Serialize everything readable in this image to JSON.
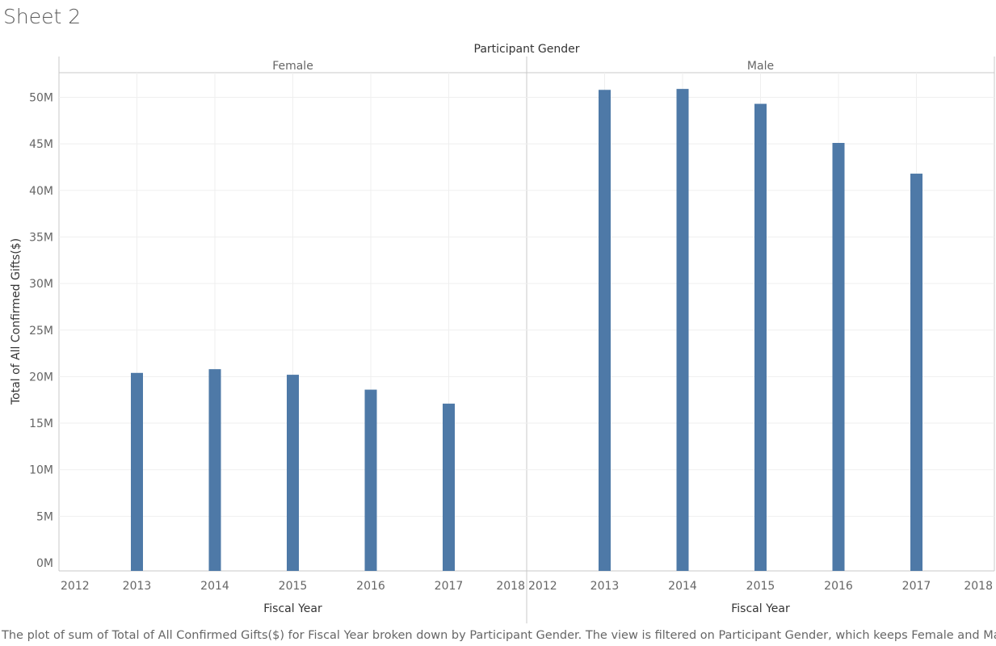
{
  "sheet": {
    "title": "Sheet 2",
    "caption": "The plot of sum of Total of All Confirmed Gifts($) for Fiscal Year broken down by Participant Gender. The view is filtered on Participant Gender, which keeps Female and Male."
  },
  "chart_data": {
    "type": "bar",
    "column_header": "Participant Gender",
    "panels": [
      "Female",
      "Male"
    ],
    "x_ticks": [
      "2012",
      "2013",
      "2014",
      "2015",
      "2016",
      "2017",
      "2018"
    ],
    "xlabel": "Fiscal Year",
    "ylabel": "Total of All Confirmed Gifts($)",
    "y_ticks": [
      "0M",
      "5M",
      "10M",
      "15M",
      "20M",
      "25M",
      "30M",
      "35M",
      "40M",
      "45M",
      "50M"
    ],
    "ylim": [
      0,
      53.5
    ],
    "y_unit": "millions of dollars",
    "categories": [
      "2013",
      "2014",
      "2015",
      "2016",
      "2017"
    ],
    "series": [
      {
        "panel": "Female",
        "values": [
          20.4,
          20.8,
          20.2,
          18.6,
          17.1
        ]
      },
      {
        "panel": "Male",
        "values": [
          50.8,
          50.9,
          49.3,
          45.1,
          41.8
        ]
      }
    ],
    "grid": true,
    "bar_color": "#4e79a7"
  }
}
